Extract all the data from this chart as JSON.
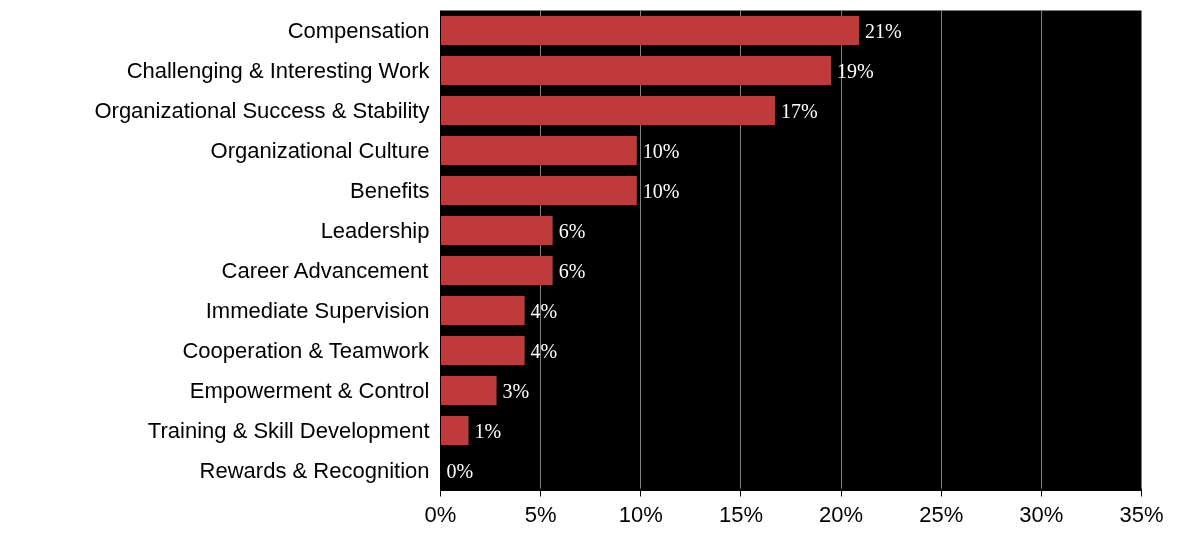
{
  "chart_data": {
    "type": "bar",
    "orientation": "horizontal",
    "categories": [
      "Compensation",
      "Challenging & Interesting Work",
      "Organizational Success & Stability",
      "Organizational Culture",
      "Benefits",
      "Leadership",
      "Career Advancement",
      "Immediate Supervision",
      "Cooperation & Teamwork",
      "Empowerment & Control",
      "Training & Skill Development",
      "Rewards & Recognition"
    ],
    "values": [
      20.9,
      19.5,
      16.7,
      9.8,
      9.8,
      5.6,
      5.6,
      4.2,
      4.2,
      2.8,
      1.4,
      0
    ],
    "value_labels": [
      "21%",
      "19%",
      "17%",
      "10%",
      "10%",
      "6%",
      "6%",
      "4%",
      "4%",
      "3%",
      "1%",
      "0%"
    ],
    "color": "#c0393b",
    "xlim": [
      0,
      35
    ],
    "xticks": [
      {
        "value": 0,
        "label": "0%"
      },
      {
        "value": 5,
        "label": "5%"
      },
      {
        "value": 10,
        "label": "10%"
      },
      {
        "value": 15,
        "label": "15%"
      },
      {
        "value": 20,
        "label": "20%"
      },
      {
        "value": 25,
        "label": "25%"
      },
      {
        "value": 30,
        "label": "30%"
      },
      {
        "value": 35,
        "label": "35%"
      }
    ],
    "grid": "x"
  }
}
